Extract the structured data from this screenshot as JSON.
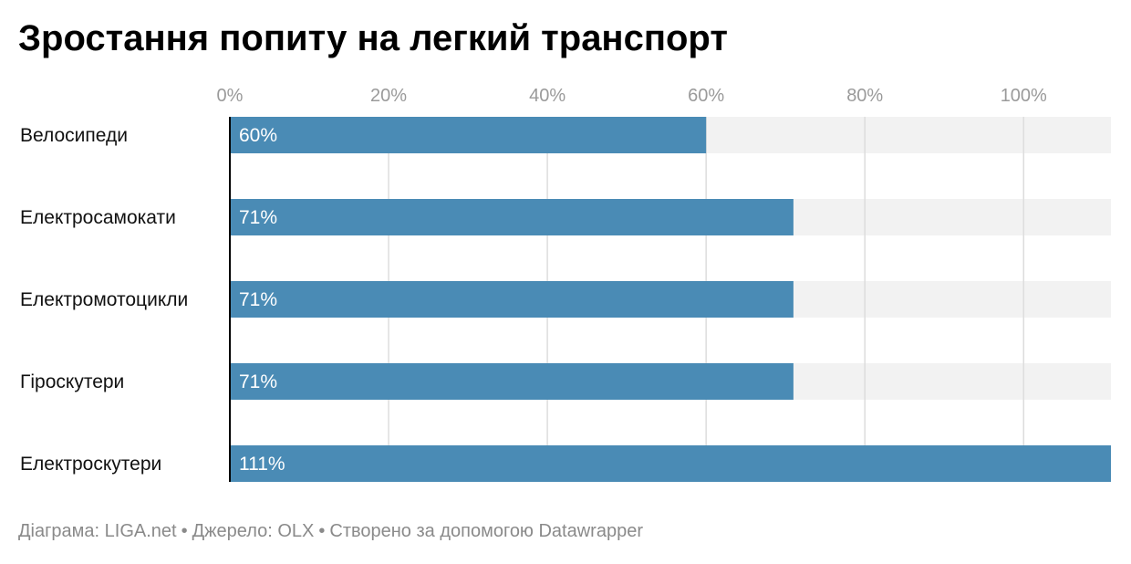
{
  "title": "Зростання попиту на легкий транспорт",
  "footer": {
    "chart_credit": "Діаграма: LIGA.net",
    "separator": "•",
    "source": "Джерело: OLX",
    "made_with": "Створено за допомогою Datawrapper"
  },
  "colors": {
    "bar": "#4a8bb5",
    "track": "#f2f2f2",
    "grid": "#dddddd",
    "tick_label": "#9a9a9a",
    "axis": "#000000"
  },
  "chart_data": {
    "type": "bar",
    "orientation": "horizontal",
    "title": "Зростання попиту на легкий транспорт",
    "categories": [
      "Велосипеди",
      "Електросамокати",
      "Електромотоцикли",
      "Гіроскутери",
      "Електроскутери"
    ],
    "values": [
      60,
      71,
      71,
      71,
      111
    ],
    "value_labels": [
      "60%",
      "71%",
      "71%",
      "71%",
      "111%"
    ],
    "x_ticks": [
      0,
      20,
      40,
      60,
      80,
      100
    ],
    "x_tick_labels": [
      "0%",
      "20%",
      "40%",
      "60%",
      "80%",
      "100%"
    ],
    "xlim": [
      0,
      111
    ],
    "xlabel": "",
    "ylabel": "",
    "grid": true,
    "legend": false
  }
}
